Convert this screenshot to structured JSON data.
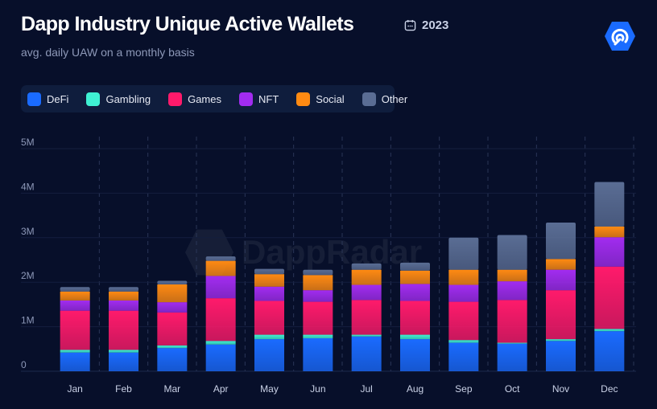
{
  "header": {
    "title": "Dapp Industry Unique Active Wallets",
    "year": "2023",
    "subtitle": "avg. daily UAW on a monthly basis",
    "watermark": "DappRadar"
  },
  "icons": {
    "calendar": "calendar-icon",
    "logo": "dappradar-logo-icon"
  },
  "legend": [
    {
      "name": "DeFi",
      "color": "#1a6bff"
    },
    {
      "name": "Gambling",
      "color": "#3ff0d2"
    },
    {
      "name": "Games",
      "color": "#ff1a6b"
    },
    {
      "name": "NFT",
      "color": "#a22cf0"
    },
    {
      "name": "Social",
      "color": "#ff8a12"
    },
    {
      "name": "Other",
      "color": "#5a6d94"
    }
  ],
  "chart_data": {
    "type": "bar",
    "stacked": true,
    "categories": [
      "Jan",
      "Feb",
      "Mar",
      "Apr",
      "May",
      "Jun",
      "Jul",
      "Aug",
      "Sep",
      "Oct",
      "Nov",
      "Dec"
    ],
    "y_tick_labels": [
      "0",
      "1M",
      "2M",
      "3M",
      "4M",
      "5M"
    ],
    "ylim": [
      0,
      5000000
    ],
    "grid": "vertical-dashed",
    "legend_position": "top-left",
    "series": [
      {
        "name": "DeFi",
        "color": "#1a6bff",
        "values": [
          420000,
          420000,
          520000,
          600000,
          720000,
          740000,
          780000,
          720000,
          640000,
          620000,
          680000,
          900000
        ]
      },
      {
        "name": "Gambling",
        "color": "#3ff0d2",
        "values": [
          60000,
          60000,
          60000,
          80000,
          100000,
          80000,
          40000,
          100000,
          60000,
          20000,
          40000,
          50000
        ]
      },
      {
        "name": "Games",
        "color": "#ff1a6b",
        "values": [
          880000,
          880000,
          740000,
          960000,
          760000,
          740000,
          780000,
          760000,
          860000,
          960000,
          1100000,
          1400000
        ]
      },
      {
        "name": "NFT",
        "color": "#a22cf0",
        "values": [
          230000,
          230000,
          230000,
          500000,
          320000,
          260000,
          340000,
          380000,
          380000,
          420000,
          460000,
          660000
        ]
      },
      {
        "name": "Social",
        "color": "#ff8a12",
        "values": [
          200000,
          200000,
          400000,
          340000,
          280000,
          340000,
          340000,
          300000,
          340000,
          260000,
          240000,
          240000
        ]
      },
      {
        "name": "Other",
        "color": "#5a6d94",
        "values": [
          100000,
          100000,
          80000,
          100000,
          120000,
          120000,
          140000,
          180000,
          720000,
          780000,
          820000,
          1000000
        ]
      }
    ]
  }
}
